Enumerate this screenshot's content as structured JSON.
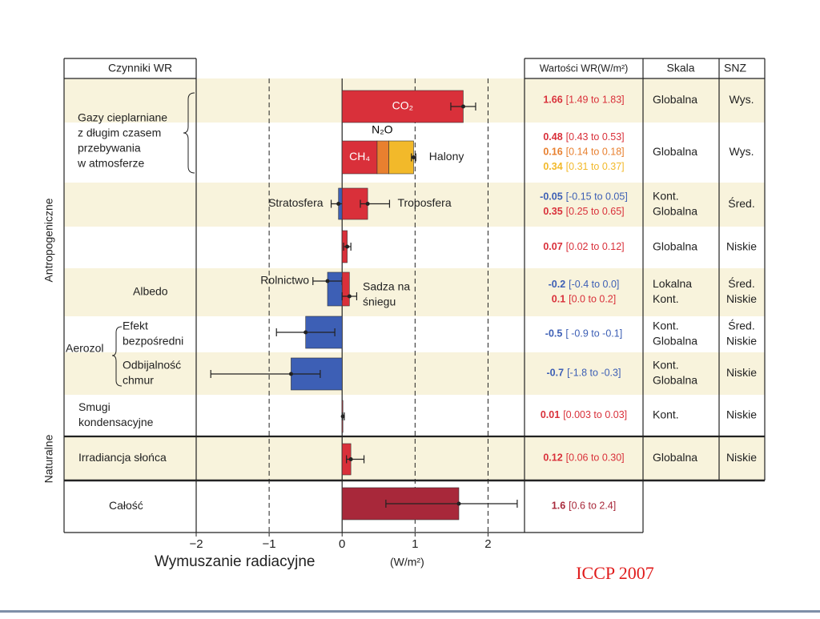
{
  "chart_data": {
    "type": "bar",
    "orientation": "horizontal",
    "headers": {
      "factors": "Czynniki WR",
      "values": "Wartości WR(W/m²)",
      "scale": "Skala",
      "snz": "SNZ"
    },
    "side_labels": [
      "Antropogeniczne",
      "Naturalne"
    ],
    "groups": [
      {
        "label": [
          "Gazy cieplarniane",
          "z długim czasem",
          "przebywania",
          "w atmosferze"
        ]
      },
      {
        "label": [
          "Aerozol"
        ]
      }
    ],
    "rows": [
      {
        "items": [
          {
            "name": "CO₂",
            "value": 1.66,
            "low": 1.49,
            "high": 1.83,
            "range_label": "[1.49 to 1.83]",
            "color": "#d9303a"
          }
        ],
        "scale": [
          "Globalna"
        ],
        "snz": [
          "Wys."
        ]
      },
      {
        "stacked": true,
        "items": [
          {
            "name": "CH₄",
            "value": 0.48,
            "low": 0.43,
            "high": 0.53,
            "range_label": "[0.43 to 0.53]",
            "color": "#d9303a"
          },
          {
            "name": "N₂O",
            "value": 0.16,
            "low": 0.14,
            "high": 0.18,
            "range_label": "[0.14 to 0.18]",
            "color": "#e8802f"
          },
          {
            "name": "Halony",
            "value": 0.34,
            "low": 0.31,
            "high": 0.37,
            "range_label": "[0.31 to 0.37]",
            "color": "#f2b92a"
          }
        ],
        "scale": [
          "Globalna"
        ],
        "snz": [
          "Wys."
        ]
      },
      {
        "items": [
          {
            "name": "Stratosfera",
            "value": -0.05,
            "low": -0.15,
            "high": 0.05,
            "range_label": "[-0.15 to 0.05]",
            "color": "#3d5fb5"
          },
          {
            "name": "Troposfera",
            "value": 0.35,
            "low": 0.25,
            "high": 0.65,
            "range_label": "[0.25 to 0.65]",
            "color": "#d9303a"
          }
        ],
        "scale": [
          "Kont.",
          "Globalna"
        ],
        "snz": [
          "Śred."
        ]
      },
      {
        "items": [
          {
            "value": 0.07,
            "low": 0.02,
            "high": 0.12,
            "range_label": "[0.02 to 0.12]",
            "color": "#d9303a"
          }
        ],
        "scale": [
          "Globalna"
        ],
        "snz": [
          "Niskie"
        ]
      },
      {
        "label": [
          "Albedo"
        ],
        "items": [
          {
            "name": "Rolnictwo",
            "value": -0.2,
            "low": -0.4,
            "high": 0.0,
            "range_label": "[-0.4 to 0.0]",
            "color": "#3d5fb5"
          },
          {
            "name": [
              "Sadza na",
              "śniegu"
            ],
            "value": 0.1,
            "low": 0.0,
            "high": 0.2,
            "range_label": "[0.0 to 0.2]",
            "color": "#d9303a"
          }
        ],
        "scale": [
          "Lokalna",
          "Kont."
        ],
        "snz": [
          "Śred.",
          "Niskie"
        ]
      },
      {
        "label": [
          "Efekt",
          "bezpośredni"
        ],
        "items": [
          {
            "value": -0.5,
            "low": -0.9,
            "high": -0.1,
            "range_label": "[ -0.9 to -0.1]",
            "color": "#3d5fb5"
          }
        ],
        "scale": [
          "Kont.",
          "Globalna"
        ],
        "snz": [
          "Śred.",
          "Niskie"
        ]
      },
      {
        "label": [
          "Odbijalność",
          "chmur"
        ],
        "items": [
          {
            "value": -0.7,
            "low": -1.8,
            "high": -0.3,
            "range_label": "[-1.8 to -0.3]",
            "color": "#3d5fb5"
          }
        ],
        "scale": [
          "Kont.",
          "Globalna"
        ],
        "snz": [
          "Niskie"
        ]
      },
      {
        "label": [
          "Smugi",
          "kondensacyjne"
        ],
        "items": [
          {
            "value": 0.01,
            "low": 0.003,
            "high": 0.03,
            "range_label": "[0.003 to 0.03]",
            "color": "#d9303a"
          }
        ],
        "scale": [
          "Kont."
        ],
        "snz": [
          "Niskie"
        ]
      },
      {
        "label": [
          "Irradiancja słońca"
        ],
        "items": [
          {
            "value": 0.12,
            "low": 0.06,
            "high": 0.3,
            "range_label": "[0.06 to 0.30]",
            "color": "#d9303a"
          }
        ],
        "scale": [
          "Globalna"
        ],
        "snz": [
          "Niskie"
        ]
      },
      {
        "label": [
          "Całość"
        ],
        "items": [
          {
            "value": 1.6,
            "low": 0.6,
            "high": 2.4,
            "range_label": "[0.6 to 2.4]",
            "color": "#a8283a"
          }
        ]
      }
    ],
    "xlabel": "Wymuszanie radiacyjne",
    "xunit": "(W/m²)",
    "xlim": [
      -2,
      2.5
    ],
    "xticks": [
      {
        "value": -2,
        "label": "−2"
      },
      {
        "value": -1,
        "label": "−1"
      },
      0,
      1,
      2
    ],
    "grid": true,
    "source": "ICCP 2007"
  }
}
